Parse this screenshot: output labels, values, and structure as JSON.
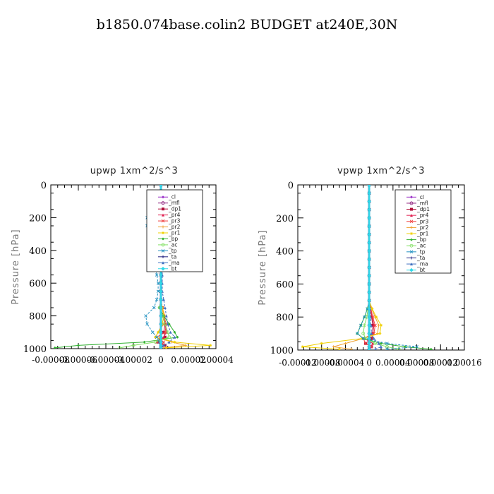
{
  "title": "b1850.074base.colin2  BUDGET at240E,30N",
  "colors": {
    "_cl": "#9b30c8",
    "_mfl": "#8b1a7a",
    "_dp1": "#b0103a",
    "_pr4": "#e02050",
    "_pr3": "#f04040",
    "_pr2": "#f0a030",
    "_pr1": "#f0d000",
    "_bp": "#30b030",
    "_ac": "#80e060",
    "_tp": "#2090c0",
    "_ta": "#202080",
    "_ma": "#4070c0",
    "_bt": "#30d8e8"
  },
  "chart_data": [
    {
      "type": "line",
      "title": "upwp   1xm^2/s^3",
      "ylabel": "Pressure [hPa]",
      "xlabel": "",
      "xlim": [
        -8e-05,
        4e-05
      ],
      "ylim": [
        1000,
        0
      ],
      "x_tick_labels": [
        "-0.00008",
        "-0.00006",
        "-0.00004",
        "-0.00002",
        "0",
        "0.00002",
        "0.00004"
      ],
      "y_tick_labels": [
        "0",
        "200",
        "400",
        "600",
        "800",
        "1000"
      ],
      "x_ticks": [
        -8e-05,
        -6e-05,
        -4e-05,
        -2e-05,
        0,
        2e-05,
        4e-05
      ],
      "y_ticks": [
        0,
        200,
        400,
        600,
        800,
        1000
      ],
      "legend": [
        "_cl",
        "_mfl",
        "_dp1",
        "_pr4",
        "_pr3",
        "_pr2",
        "_pr1",
        "_bp",
        "_ac",
        "_tp",
        "_ta",
        "_ma",
        "_bt"
      ],
      "legend_position": "top-right",
      "pressure": [
        0,
        50,
        100,
        150,
        200,
        250,
        300,
        350,
        400,
        450,
        500,
        550,
        600,
        650,
        700,
        750,
        800,
        850,
        900,
        930,
        960,
        980,
        995
      ],
      "series": [
        {
          "name": "_cl",
          "x": [
            0,
            0,
            0,
            0,
            0,
            0,
            0,
            0,
            0,
            0,
            0,
            0,
            0,
            0,
            0,
            0,
            0,
            0,
            0,
            0,
            0,
            0,
            0
          ]
        },
        {
          "name": "_mfl",
          "x": [
            0,
            0,
            0,
            0,
            0,
            0,
            0,
            0,
            0,
            0,
            0,
            0,
            0,
            0,
            0,
            0,
            0,
            0,
            0,
            0,
            0,
            0,
            0
          ]
        },
        {
          "name": "_dp1",
          "x": [
            0,
            0,
            1e-06,
            1e-06,
            2e-06,
            2e-06,
            1e-06,
            1e-06,
            0,
            0,
            0,
            0,
            0,
            0,
            0,
            1e-06,
            2e-06,
            3e-06,
            2e-06,
            3e-06,
            -2e-06,
            3e-06,
            0
          ]
        },
        {
          "name": "_pr4",
          "x": [
            0,
            0,
            1e-06,
            2e-06,
            3e-06,
            2e-06,
            2e-06,
            1e-06,
            0,
            0,
            0,
            0,
            0,
            0,
            0,
            1e-06,
            2e-06,
            3e-06,
            4e-06,
            2e-06,
            -3e-06,
            2e-06,
            0
          ]
        },
        {
          "name": "_pr3",
          "x": [
            0,
            0,
            1e-06,
            2e-06,
            2e-06,
            2e-06,
            1e-06,
            1e-06,
            0,
            0,
            0,
            0,
            0,
            0,
            0,
            1e-06,
            2e-06,
            4e-06,
            3e-06,
            -3e-06,
            2e-06,
            1e-06,
            0
          ]
        },
        {
          "name": "_pr2",
          "x": [
            0,
            0,
            2e-06,
            3e-06,
            3e-06,
            3e-06,
            2e-06,
            1e-06,
            0,
            0,
            0,
            0,
            0,
            0,
            0,
            1e-06,
            3e-06,
            2e-06,
            -2e-06,
            -4e-06,
            8e-06,
            1.8e-05,
            2e-06
          ]
        },
        {
          "name": "_pr1",
          "x": [
            0,
            0,
            2e-06,
            3e-06,
            4e-06,
            3e-06,
            2e-06,
            1e-06,
            0,
            0,
            0,
            0,
            0,
            0,
            0,
            1e-06,
            2e-06,
            1e-06,
            -2e-06,
            -4e-06,
            1e-05,
            3.6e-05,
            4e-06
          ]
        },
        {
          "name": "_bp",
          "x": [
            0,
            0,
            -2e-06,
            -3e-06,
            -4e-06,
            -4e-06,
            -3e-06,
            -2e-06,
            -1e-06,
            0,
            0,
            0,
            0,
            0,
            0,
            -1e-06,
            2e-06,
            6e-06,
            1e-05,
            1.2e-05,
            -1.2e-05,
            -6e-05,
            -7.7e-05
          ]
        },
        {
          "name": "_ac",
          "x": [
            0,
            0,
            -1e-06,
            -2e-06,
            -2e-06,
            -2e-06,
            -1e-06,
            -1e-06,
            0,
            0,
            0,
            0,
            0,
            0,
            0,
            -1e-06,
            1e-06,
            3e-06,
            5e-06,
            6e-06,
            -4e-06,
            -2e-05,
            -3e-05
          ]
        },
        {
          "name": "_tp",
          "x": [
            0,
            -1e-06,
            -3e-06,
            -7e-06,
            -1e-05,
            -1e-05,
            -9e-06,
            -7e-06,
            -6e-06,
            -5e-06,
            -4e-06,
            -3e-06,
            -2e-06,
            -2e-06,
            -3e-06,
            -5e-06,
            -1.1e-05,
            -1e-05,
            -6e-06,
            -3e-06,
            -1e-06,
            0,
            0
          ]
        },
        {
          "name": "_ta",
          "x": [
            0,
            0,
            0,
            0,
            0,
            0,
            0,
            0,
            0,
            0,
            0,
            0,
            0,
            0,
            0,
            0,
            0,
            0,
            0,
            0,
            0,
            0,
            0
          ]
        },
        {
          "name": "_ma",
          "x": [
            0,
            0,
            1e-06,
            2e-06,
            3e-06,
            3e-06,
            2e-06,
            2e-06,
            1e-06,
            1e-06,
            1e-06,
            1e-06,
            1e-06,
            1e-06,
            2e-06,
            3e-06,
            4e-06,
            5e-06,
            7e-06,
            1e-05,
            6e-06,
            2e-06,
            0
          ]
        },
        {
          "name": "_bt",
          "x": [
            0,
            0,
            0,
            0,
            0,
            0,
            0,
            0,
            0,
            0,
            0,
            0,
            0,
            0,
            0,
            0,
            0,
            0,
            0,
            0,
            0,
            0,
            0
          ]
        }
      ]
    },
    {
      "type": "line",
      "title": "vpwp   1xm^2/s^3",
      "ylabel": "Pressure [hPa]",
      "xlabel": "",
      "xlim": [
        -0.00012,
        0.00016
      ],
      "ylim": [
        1000,
        0
      ],
      "x_tick_labels": [
        "-0.00012",
        "-0.00008",
        "-0.00004",
        "0",
        "0.00004",
        "0.00008",
        "0.00012",
        "0.00016"
      ],
      "y_tick_labels": [
        "0",
        "200",
        "400",
        "600",
        "800",
        "1000"
      ],
      "x_ticks": [
        -0.00012,
        -8e-05,
        -4e-05,
        0,
        4e-05,
        8e-05,
        0.00012,
        0.00016
      ],
      "y_ticks": [
        0,
        200,
        400,
        600,
        800,
        1000
      ],
      "legend": [
        "_cl",
        "_mfl",
        "_dp1",
        "_pr4",
        "_pr3",
        "_pr2",
        "_pr1",
        "_bp",
        "_ac",
        "_tp",
        "_ta",
        "_ma",
        "_bt"
      ],
      "legend_position": "top-right",
      "pressure": [
        0,
        50,
        100,
        150,
        200,
        250,
        300,
        350,
        400,
        450,
        500,
        550,
        600,
        650,
        700,
        750,
        800,
        850,
        900,
        930,
        960,
        980,
        995
      ],
      "series": [
        {
          "name": "_cl",
          "x": [
            0,
            0,
            0,
            0,
            0,
            0,
            0,
            0,
            0,
            0,
            0,
            0,
            0,
            0,
            0,
            0,
            0,
            0,
            0,
            0,
            0,
            0,
            0
          ]
        },
        {
          "name": "_mfl",
          "x": [
            0,
            0,
            0,
            0,
            0,
            0,
            0,
            0,
            0,
            0,
            0,
            0,
            0,
            0,
            0,
            0,
            0,
            0,
            0,
            0,
            0,
            0,
            0
          ]
        },
        {
          "name": "_dp1",
          "x": [
            0,
            0,
            0,
            0,
            0,
            0,
            0,
            0,
            0,
            0,
            0,
            0,
            0,
            0,
            0,
            2e-06,
            4e-06,
            6e-06,
            6e-06,
            4e-06,
            -6e-06,
            4e-06,
            0
          ]
        },
        {
          "name": "_pr4",
          "x": [
            0,
            0,
            0,
            0,
            0,
            0,
            0,
            0,
            0,
            0,
            0,
            0,
            0,
            0,
            0,
            2e-06,
            5e-06,
            8e-06,
            6e-06,
            -8e-06,
            6e-06,
            3e-06,
            0
          ]
        },
        {
          "name": "_pr3",
          "x": [
            0,
            0,
            0,
            0,
            0,
            0,
            0,
            0,
            0,
            0,
            0,
            0,
            0,
            0,
            0,
            3e-06,
            6e-06,
            1e-05,
            8e-06,
            -1e-05,
            -6e-06,
            4e-06,
            0
          ]
        },
        {
          "name": "_pr2",
          "x": [
            0,
            0,
            0,
            0,
            0,
            0,
            0,
            0,
            0,
            0,
            0,
            0,
            0,
            0,
            0,
            4e-06,
            1e-05,
            1.6e-05,
            1.4e-05,
            -1e-05,
            -4e-05,
            -6e-05,
            -3e-05
          ]
        },
        {
          "name": "_pr1",
          "x": [
            0,
            0,
            0,
            0,
            0,
            0,
            0,
            0,
            0,
            0,
            0,
            0,
            0,
            0,
            0,
            5e-06,
            1.2e-05,
            2e-05,
            1.8e-05,
            -1.2e-05,
            -8e-05,
            -0.000112,
            -5e-05
          ]
        },
        {
          "name": "_bp",
          "x": [
            0,
            0,
            0,
            0,
            0,
            0,
            0,
            0,
            0,
            0,
            0,
            0,
            0,
            0,
            0,
            -3e-06,
            -8e-06,
            -1.4e-05,
            -2e-05,
            -1e-05,
            2e-05,
            6e-05,
            0.000104
          ]
        },
        {
          "name": "_ac",
          "x": [
            0,
            0,
            0,
            0,
            0,
            0,
            0,
            0,
            0,
            0,
            0,
            0,
            0,
            0,
            0,
            -2e-06,
            -4e-06,
            -8e-06,
            -1e-05,
            -6e-06,
            1e-05,
            3e-05,
            5e-05
          ]
        },
        {
          "name": "_tp",
          "x": [
            0,
            0,
            0,
            0,
            0,
            0,
            0,
            0,
            0,
            0,
            0,
            0,
            0,
            0,
            0,
            -3e-06,
            -8e-06,
            -1.4e-05,
            -2e-05,
            -1e-05,
            3e-05,
            8e-05,
            3e-05
          ]
        },
        {
          "name": "_ta",
          "x": [
            0,
            0,
            0,
            0,
            0,
            0,
            0,
            0,
            0,
            0,
            0,
            0,
            0,
            0,
            0,
            0,
            0,
            0,
            0,
            0,
            0,
            0,
            0
          ]
        },
        {
          "name": "_ma",
          "x": [
            0,
            0,
            0,
            0,
            0,
            0,
            0,
            0,
            0,
            0,
            0,
            0,
            0,
            0,
            0,
            1e-06,
            2e-06,
            3e-06,
            4e-06,
            8e-06,
            1.6e-05,
            2e-05,
            1e-05
          ]
        },
        {
          "name": "_bt",
          "x": [
            0,
            0,
            0,
            0,
            0,
            0,
            0,
            0,
            0,
            0,
            0,
            0,
            0,
            0,
            0,
            0,
            0,
            0,
            0,
            0,
            0,
            0,
            0
          ]
        }
      ]
    }
  ]
}
